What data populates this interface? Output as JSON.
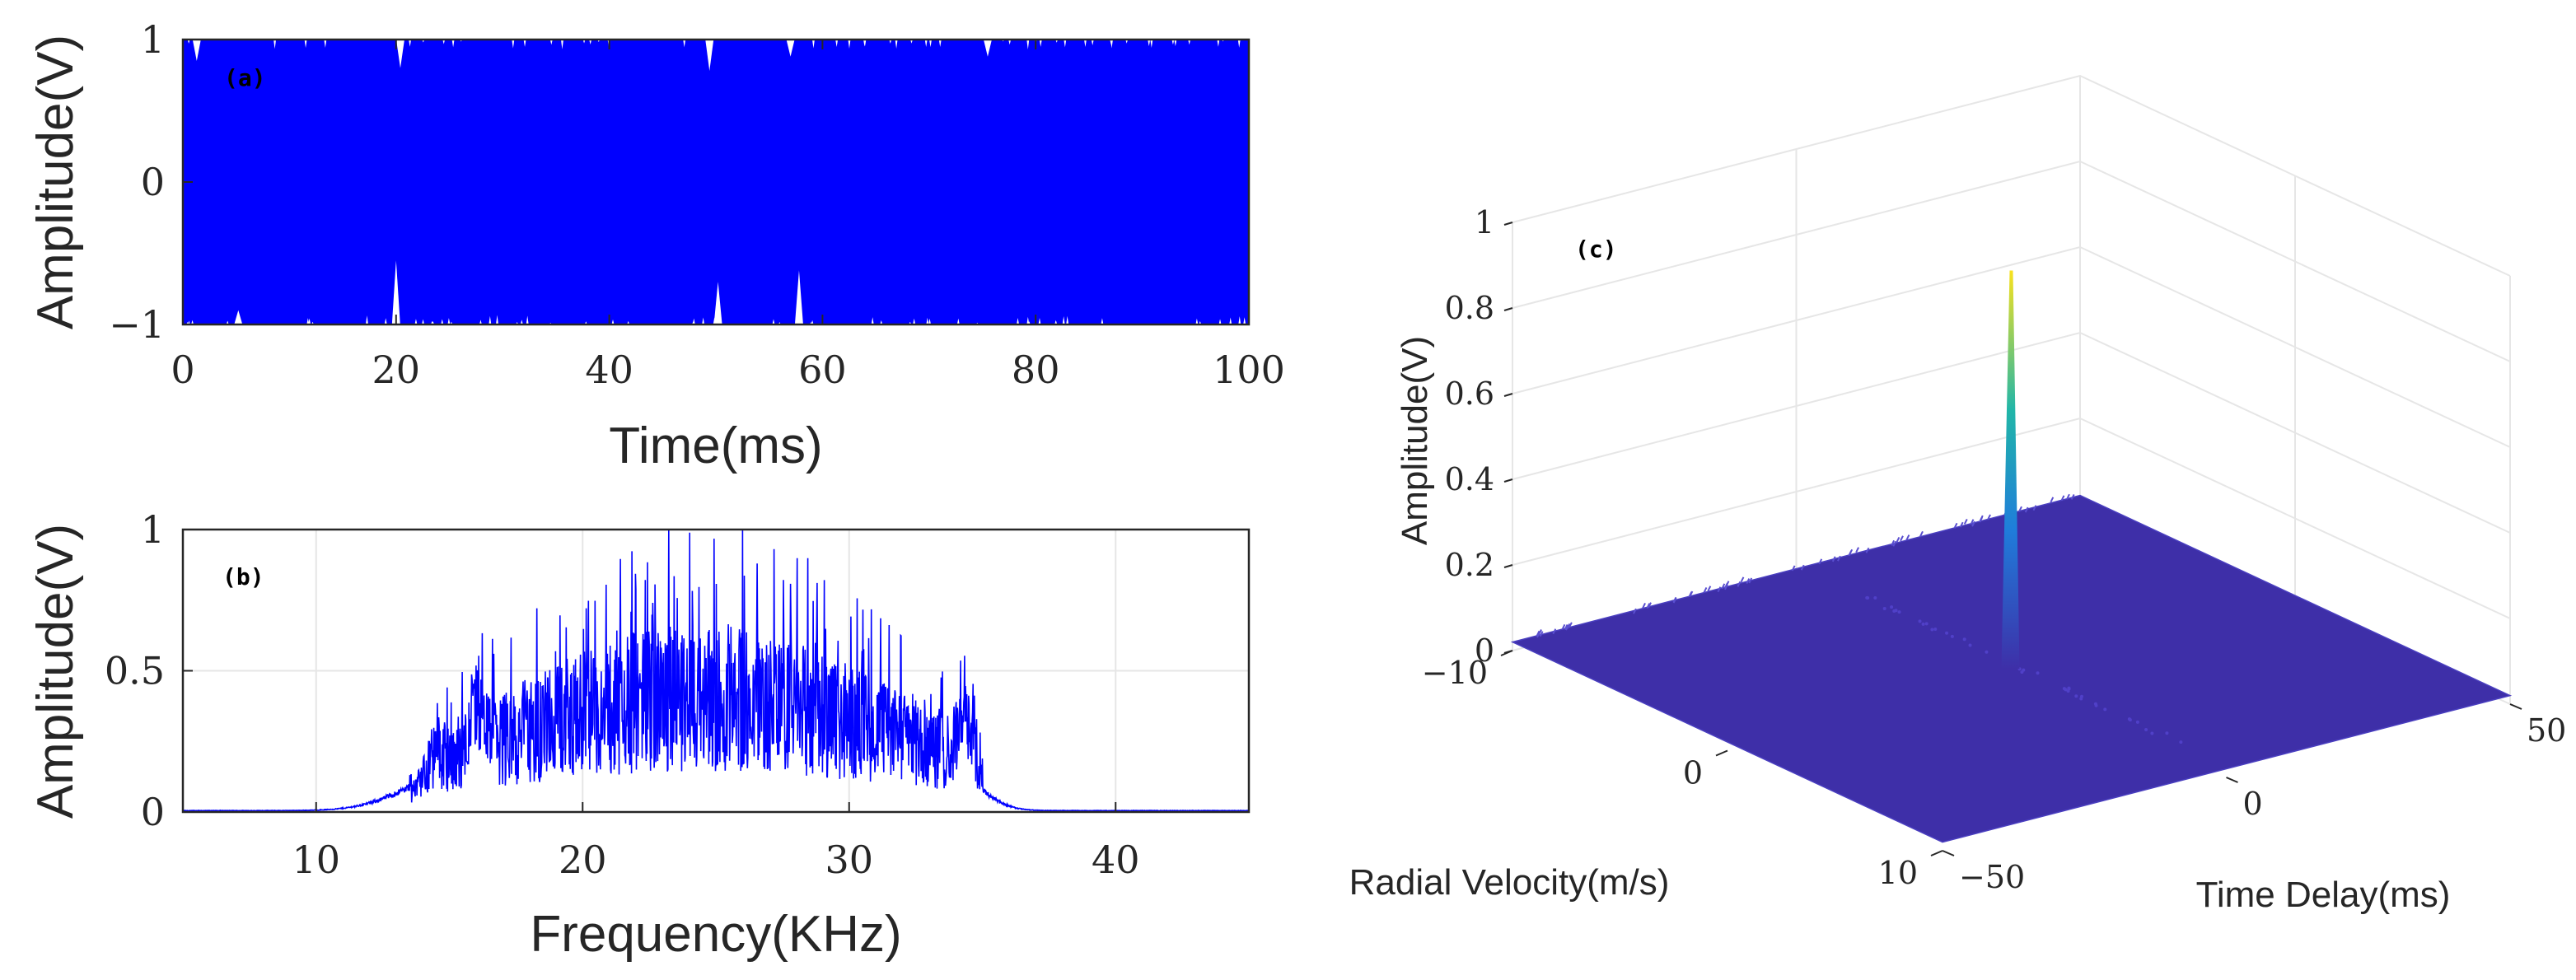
{
  "colors": {
    "signal": "#0000ff",
    "surface_fill": "#3e2fa8",
    "surface_edge": "#4a3fc0",
    "peak_top": "#f9e21e",
    "peak_mid": "#21b6a8",
    "peak_low": "#1f7ddb",
    "axis": "#262626",
    "grid": "#e6e6e6"
  },
  "chart_data": [
    {
      "id": "a",
      "type": "line",
      "panel_label": "(a)",
      "xlabel": "Time(ms)",
      "ylabel": "Amplitude(V)",
      "xlim": [
        0,
        100
      ],
      "ylim": [
        -1,
        1
      ],
      "xticks": [
        0,
        20,
        40,
        60,
        80,
        100
      ],
      "xtick_labels": [
        "0",
        "20",
        "40",
        "60",
        "80",
        "100"
      ],
      "yticks": [
        -1,
        0,
        1
      ],
      "ytick_labels": [
        "−1",
        "0",
        "1"
      ],
      "grid": false,
      "description_series": "dense random-phase noise waveform filling the band between -1 and 1",
      "envelope_dips": [
        {
          "x": 1.3,
          "top": 0.85
        },
        {
          "x": 5.2,
          "bottom": -0.9
        },
        {
          "x": 20.0,
          "bottom": -0.55
        },
        {
          "x": 20.4,
          "top": 0.8
        },
        {
          "x": 49.4,
          "top": 0.78
        },
        {
          "x": 50.2,
          "bottom": -0.7
        },
        {
          "x": 57.8,
          "bottom": -0.62
        },
        {
          "x": 57.0,
          "top": 0.88
        },
        {
          "x": 75.5,
          "top": 0.88
        }
      ]
    },
    {
      "id": "b",
      "type": "line",
      "panel_label": "(b)",
      "xlabel": "Frequency(KHz)",
      "ylabel": "Amplitude(V)",
      "xlim": [
        5,
        45
      ],
      "ylim": [
        0,
        1
      ],
      "xticks": [
        10,
        20,
        30,
        40
      ],
      "xtick_labels": [
        "10",
        "20",
        "30",
        "40"
      ],
      "yticks": [
        0,
        0.5,
        1
      ],
      "ytick_labels": [
        "0",
        "0.5",
        "1"
      ],
      "grid": true,
      "band_kHz": [
        15,
        34
      ],
      "peak": {
        "x": 26,
        "y": 1.0
      },
      "shoulder_peaks": [
        {
          "x": 16.0,
          "y": 0.2
        },
        {
          "x": 34.3,
          "y": 0.21
        }
      ],
      "envelope_center_level": 0.38
    },
    {
      "id": "c",
      "type": "surface",
      "panel_label": "(c)",
      "xlabel": "Time Delay(ms)",
      "ylabel": "Radial Velocity(m/s)",
      "zlabel": "Amplitude(V)",
      "xlim": [
        -50,
        50
      ],
      "ylim": [
        -10,
        10
      ],
      "zlim": [
        0,
        1
      ],
      "xtick_labels": [
        "−50",
        "0",
        "50"
      ],
      "ytick_labels": [
        "−10",
        "0",
        "10"
      ],
      "ztick_labels": [
        "0",
        "0.2",
        "0.4",
        "0.6",
        "0.8",
        "1"
      ],
      "peak": {
        "x": 0,
        "y": 0,
        "z": 0.95
      },
      "floor_level": 0.02
    }
  ]
}
